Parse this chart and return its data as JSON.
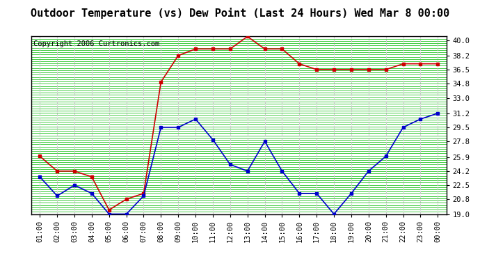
{
  "title": "Outdoor Temperature (vs) Dew Point (Last 24 Hours) Wed Mar 8 00:00",
  "copyright": "Copyright 2006 Curtronics.com",
  "x_labels": [
    "01:00",
    "02:00",
    "03:00",
    "04:00",
    "05:00",
    "06:00",
    "07:00",
    "08:00",
    "09:00",
    "10:00",
    "11:00",
    "12:00",
    "13:00",
    "14:00",
    "15:00",
    "16:00",
    "17:00",
    "18:00",
    "19:00",
    "20:00",
    "21:00",
    "22:00",
    "23:00",
    "00:00"
  ],
  "temp_red": [
    26.0,
    24.2,
    24.2,
    23.5,
    19.5,
    20.8,
    21.5,
    35.0,
    38.2,
    39.0,
    39.0,
    39.0,
    40.5,
    39.0,
    39.0,
    37.2,
    36.5,
    36.5,
    36.5,
    36.5,
    36.5,
    37.2,
    37.2,
    37.2
  ],
  "temp_blue": [
    23.5,
    21.2,
    22.5,
    21.5,
    19.0,
    19.0,
    21.2,
    29.5,
    29.5,
    30.5,
    28.0,
    25.0,
    24.2,
    27.8,
    24.2,
    21.5,
    21.5,
    19.0,
    21.5,
    24.2,
    26.0,
    29.5,
    30.5,
    31.2
  ],
  "ylim": [
    19.0,
    40.5
  ],
  "yticks": [
    19.0,
    20.8,
    22.5,
    24.2,
    25.9,
    27.8,
    29.5,
    31.2,
    33.0,
    34.8,
    36.5,
    38.2,
    40.0
  ],
  "ytick_labels": [
    "19.0",
    "20.8",
    "22.5",
    "24.2",
    "25.9",
    "27.8",
    "29.5",
    "31.2",
    "33.0",
    "34.8",
    "36.5",
    "38.2",
    "40.0"
  ],
  "bg_color": "#ffffff",
  "plot_bg_color": "#ffffff",
  "green_line_color": "#00bb00",
  "white_dash_color": "#cccccc",
  "line_color_red": "#cc0000",
  "line_color_blue": "#0000cc",
  "title_fontsize": 11,
  "copyright_fontsize": 7.5,
  "tick_fontsize": 7.5
}
